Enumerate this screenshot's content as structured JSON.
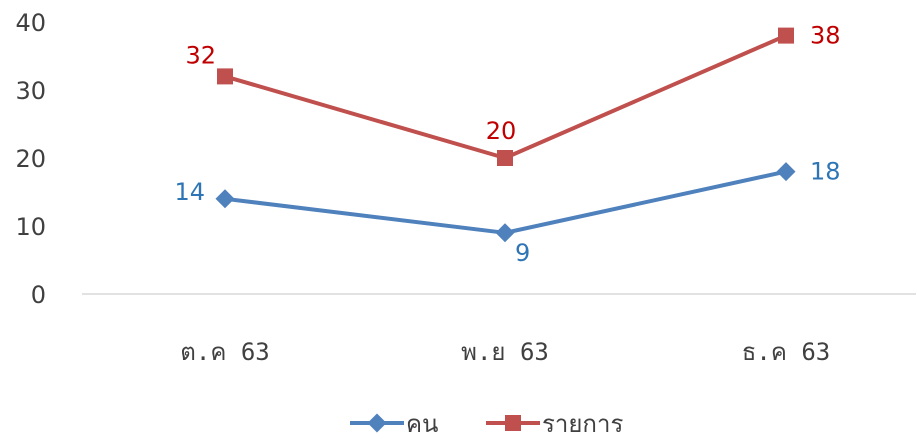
{
  "chart_data": {
    "type": "line",
    "categories": [
      "ต.ค 63",
      "พ.ย 63",
      "ธ.ค 63"
    ],
    "ylim": [
      0,
      40
    ],
    "yticks": [
      0,
      10,
      20,
      30,
      40
    ],
    "grid": false,
    "legend_position": "bottom",
    "series": [
      {
        "name": "คน",
        "values": [
          14,
          9,
          18
        ],
        "labels": [
          "14",
          "9",
          "18"
        ],
        "color": "#4F81BD",
        "label_color": "#2E75B6",
        "marker": "diamond"
      },
      {
        "name": "รายการ",
        "values": [
          32,
          20,
          38
        ],
        "labels": [
          "32",
          "20",
          "38"
        ],
        "color": "#C0504D",
        "label_color": "#C00000",
        "marker": "square"
      }
    ]
  }
}
